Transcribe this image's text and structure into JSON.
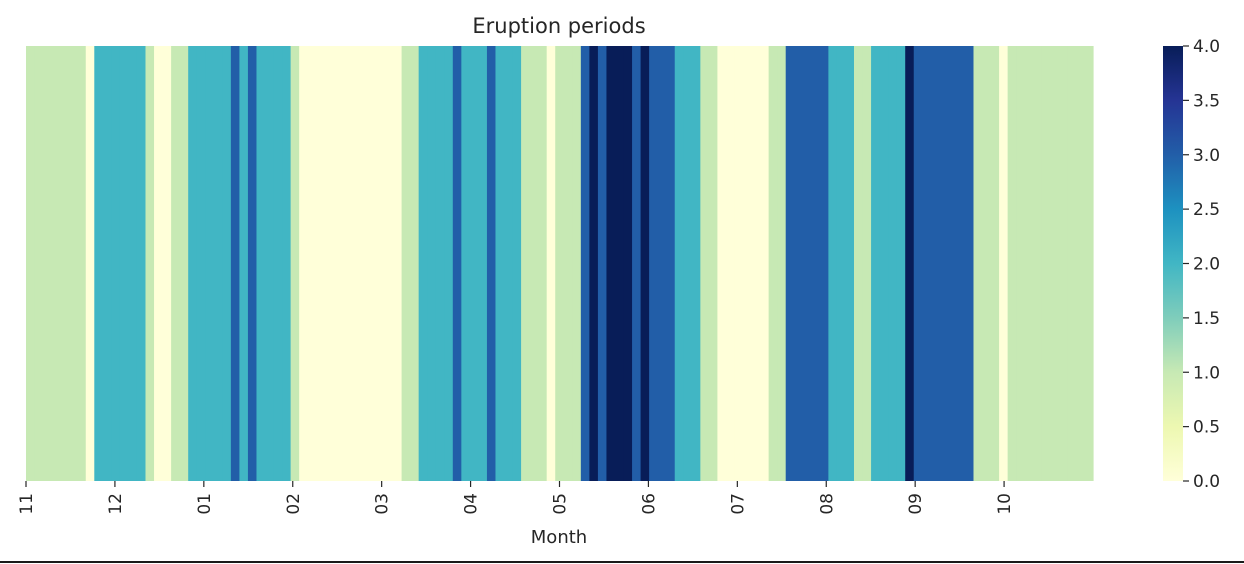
{
  "chart_data": {
    "type": "heatmap",
    "title": "Eruption periods",
    "xlabel": "Month",
    "ylabel": "",
    "x_ticks": [
      "11",
      "12",
      "01",
      "02",
      "03",
      "04",
      "05",
      "06",
      "07",
      "08",
      "09",
      "10"
    ],
    "colorbar": {
      "min": 0.0,
      "max": 4.0,
      "ticks": [
        "0.0",
        "0.5",
        "1.0",
        "1.5",
        "2.0",
        "2.5",
        "3.0",
        "3.5",
        "4.0"
      ],
      "colormap": "YlGnBu"
    },
    "values": [
      1,
      1,
      1,
      1,
      1,
      1,
      1,
      0,
      2,
      2,
      2,
      2,
      2,
      2,
      1,
      0,
      0,
      1,
      1,
      2,
      2,
      2,
      2,
      2,
      3,
      2,
      3,
      2,
      2,
      2,
      2,
      1,
      0,
      0,
      0,
      0,
      0,
      0,
      0,
      0,
      0,
      0,
      0,
      0,
      1,
      1,
      2,
      2,
      2,
      2,
      3,
      2,
      2,
      2,
      3,
      2,
      2,
      2,
      1,
      1,
      1,
      0,
      1,
      1,
      1,
      3,
      4,
      3,
      4,
      4,
      4,
      3,
      4,
      3,
      3,
      3,
      2,
      2,
      2,
      1,
      1,
      0,
      0,
      0,
      0,
      0,
      0,
      1,
      1,
      3,
      3,
      3,
      3,
      3,
      2,
      2,
      2,
      1,
      1,
      2,
      2,
      2,
      2,
      4,
      3,
      3,
      3,
      3,
      3,
      3,
      3,
      1,
      1,
      1,
      0,
      1,
      1,
      1,
      1,
      1,
      1,
      1,
      1,
      1,
      1
    ]
  }
}
